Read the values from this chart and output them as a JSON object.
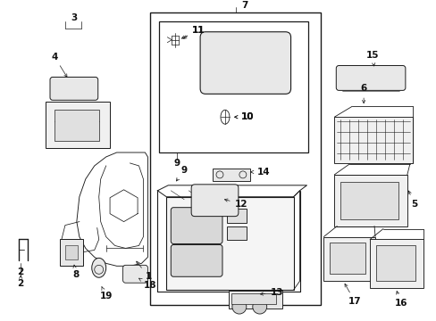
{
  "background_color": "#ffffff",
  "line_color": "#1a1a1a",
  "text_color": "#111111",
  "figsize": [
    4.89,
    3.6
  ],
  "dpi": 100,
  "label_fontsize": 7.5,
  "arrow_lw": 0.5,
  "draw_lw": 0.65
}
